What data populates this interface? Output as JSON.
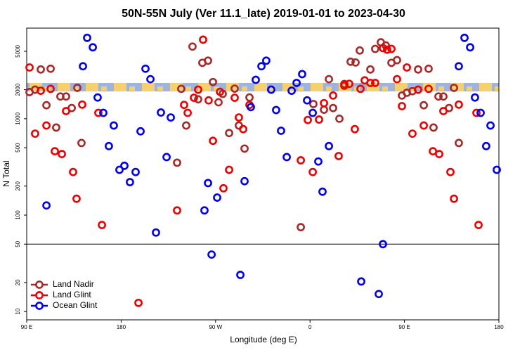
{
  "chart_data": {
    "type": "scatter",
    "title": "50N-55N July (Ver 11.1_late)   2019-01-01 to 2023-04-30",
    "xlabel": "Longitude (deg E)",
    "ylabel": "N Total",
    "xlim": [
      90,
      540
    ],
    "xticks": [
      {
        "value": 90,
        "label": "90 E"
      },
      180,
      {
        "value": 270,
        "label": "90 W"
      },
      {
        "value": 360,
        "label": "0"
      },
      {
        "value": 450,
        "label": "90 E"
      },
      {
        "value": 540,
        "label": "180"
      }
    ],
    "ylim": [
      8.2,
      8700
    ],
    "log_y": true,
    "yticks": [
      10,
      20,
      50,
      100,
      200,
      500,
      1000,
      2000,
      5000
    ],
    "reference_line": 50,
    "legend": "lower left",
    "series": [
      {
        "name": "Land Nadir",
        "color": "#a52a2a",
        "x": [
          92.7,
          98,
          103.4,
          108.8,
          112.8,
          118.1,
          122.1,
          127.5,
          132.9,
          138.2,
          142.2,
          233.3,
          237.3,
          242,
          248,
          253.4,
          257.4,
          262.8,
          267.5,
          272.8,
          276.8,
          282.9,
          288.2,
          292.2,
          297.6,
          302.3,
          351.2,
          363.2,
          373.3,
          378,
          382,
          388,
          392.7,
          398.7,
          403.4,
          407.4,
          417.5,
          422.1,
          427.5,
          432.2,
          437.6,
          442.9,
          447.6,
          452.3,
          457.6,
          463,
          468.4,
          473,
          477.7,
          482.4,
          487.1,
          492.5,
          497.2,
          501.8
        ],
        "values": [
          1890,
          2000,
          3240,
          1380,
          3300,
          810,
          1700,
          1700,
          1290,
          2090,
          560,
          350,
          2040,
          850,
          5600,
          1590,
          3800,
          4000,
          2400,
          1480,
          1810,
          710,
          2050,
          850,
          490,
          1660,
          75,
          1420,
          1240,
          2570,
          1290,
          1000,
          2290,
          3900,
          3830,
          5100,
          3240,
          5300,
          6200,
          5750,
          3800,
          4050,
          1740,
          1860,
          1930,
          3240,
          1380,
          3300,
          810,
          1700,
          1700,
          1290,
          2090,
          560
        ]
      },
      {
        "name": "Land Glint",
        "color": "#ee0000",
        "x": [
          92.7,
          98,
          103.4,
          108.8,
          112.8,
          116.8,
          123.5,
          127.5,
          134.2,
          137.5,
          142.9,
          161.7,
          158.3,
          196.5,
          233.3,
          240,
          243.4,
          249.4,
          253.4,
          258.1,
          263.4,
          267.5,
          274.2,
          277.5,
          282.9,
          288.2,
          292.2,
          296.3,
          302.3,
          351.2,
          357.9,
          362.6,
          368.6,
          373.3,
          382,
          387.3,
          392.7,
          397.4,
          402.7,
          408.1,
          412.1,
          417.5,
          422.1,
          429.5,
          433.5,
          437.6,
          442.9,
          447.6,
          452.3,
          457.6,
          463,
          468.4,
          473,
          477.1,
          483.1,
          487.1,
          493.8,
          497.2,
          501.8,
          520.6,
          518.6
        ],
        "values": [
          3400,
          700,
          1950,
          850,
          2040,
          460,
          430,
          1200,
          280,
          148,
          1400,
          79,
          1150,
          12.3,
          112,
          1390,
          1150,
          1650,
          2000,
          6600,
          1550,
          590,
          1900,
          190,
          295,
          1650,
          1030,
          780,
          1390,
          370,
          970,
          280,
          980,
          1450,
          1740,
          410,
          2200,
          2300,
          780,
          2040,
          2500,
          2350,
          2350,
          5400,
          5200,
          5300,
          2570,
          1350,
          3400,
          700,
          2000,
          850,
          2040,
          460,
          430,
          1200,
          280,
          148,
          1400,
          79,
          1150
        ]
      },
      {
        "name": "Ocean Glint",
        "color": "#0000ee",
        "x": [
          108.8,
          143.6,
          147.6,
          153,
          157.6,
          163,
          168.3,
          173,
          178.4,
          183.1,
          188.4,
          193.8,
          198.5,
          203.2,
          207.9,
          213.2,
          217.9,
          223.3,
          227.3,
          259.4,
          262.8,
          266.2,
          271.5,
          293.6,
          297.6,
          303.6,
          308.3,
          313.7,
          318.3,
          323,
          327.7,
          332.4,
          337.8,
          342.5,
          347.2,
          352.5,
          357.2,
          362.6,
          367.9,
          371.9,
          378,
          408.8,
          425.5,
          429.5,
          501.8,
          507.2,
          512.6,
          517.2,
          522.6,
          527.9,
          532,
          538
        ],
        "values": [
          126,
          3500,
          6900,
          5500,
          1660,
          1150,
          520,
          850,
          295,
          325,
          220,
          280,
          740,
          3300,
          2570,
          66,
          1160,
          400,
          1030,
          112,
          215,
          39,
          152,
          24,
          225,
          1320,
          2530,
          3500,
          4000,
          2000,
          1230,
          750,
          400,
          1950,
          2350,
          2900,
          1550,
          1150,
          360,
          175,
          520,
          20.5,
          15.2,
          50,
          3500,
          6900,
          5500,
          1660,
          1150,
          520,
          850,
          295
        ]
      }
    ]
  }
}
